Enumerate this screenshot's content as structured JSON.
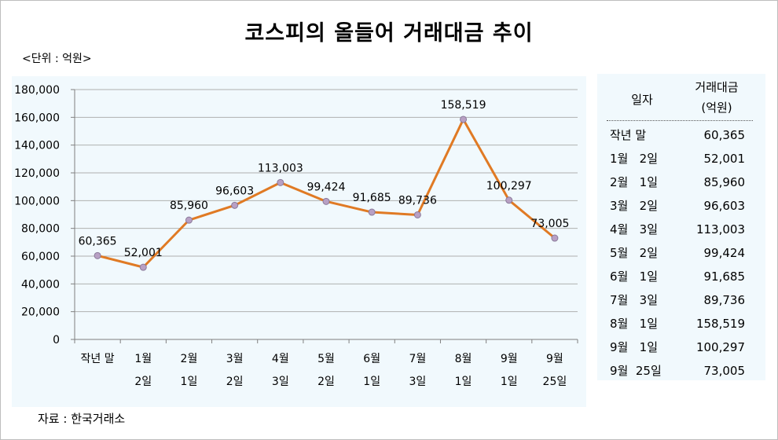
{
  "title": "코스피의 올들어 거래대금 추이",
  "unit": "<단위 : 억원>",
  "source": "자료 : 한국거래소",
  "table": {
    "header_date": "일자",
    "header_value_line1": "거래대금",
    "header_value_line2": "(억원)",
    "rows": [
      {
        "date": "작년 말",
        "value": "60,365"
      },
      {
        "date": "1월   2일",
        "value": "52,001"
      },
      {
        "date": "2월   1일",
        "value": "85,960"
      },
      {
        "date": "3월   2일",
        "value": "96,603"
      },
      {
        "date": "4월   3일",
        "value": "113,003"
      },
      {
        "date": "5월   2일",
        "value": "99,424"
      },
      {
        "date": "6월   1일",
        "value": "91,685"
      },
      {
        "date": "7월   3일",
        "value": "89,736"
      },
      {
        "date": "8월   1일",
        "value": "158,519"
      },
      {
        "date": "9월   1일",
        "value": "100,297"
      },
      {
        "date": "9월  25일",
        "value": "73,005"
      }
    ]
  },
  "chart_data": {
    "type": "line",
    "categories": [
      [
        "작년 말",
        ""
      ],
      [
        "1월",
        "2일"
      ],
      [
        "2월",
        "1일"
      ],
      [
        "3월",
        "2일"
      ],
      [
        "4월",
        "3일"
      ],
      [
        "5월",
        "2일"
      ],
      [
        "6월",
        "1일"
      ],
      [
        "7월",
        "3일"
      ],
      [
        "8월",
        "1일"
      ],
      [
        "9월",
        "1일"
      ],
      [
        "9월",
        "25일"
      ]
    ],
    "values": [
      60365,
      52001,
      85960,
      96603,
      113003,
      99424,
      91685,
      89736,
      158519,
      100297,
      73005
    ],
    "data_labels": [
      "60,365",
      "52,001",
      "85,960",
      "96,603",
      "113,003",
      "99,424",
      "91,685",
      "89,736",
      "158,519",
      "100,297",
      "73,005"
    ],
    "y_ticks": [
      "0",
      "20,000",
      "40,000",
      "60,000",
      "80,000",
      "100,000",
      "120,000",
      "140,000",
      "160,000",
      "180,000"
    ],
    "ylim": [
      0,
      180000
    ],
    "grid": true,
    "line_color": "#e07a24",
    "marker_fill": "#b8a0c4",
    "marker_stroke": "#8a7a9a",
    "gridline_color": "#b0b0b0"
  }
}
